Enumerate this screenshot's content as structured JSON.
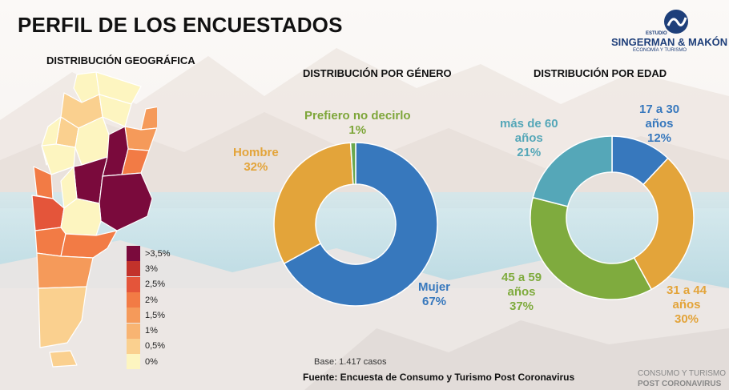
{
  "page": {
    "title": "PERFIL DE LOS ENCUESTADOS",
    "logo": {
      "top_text": "ESTUDIO",
      "name": "SINGERMAN & MAKÓN",
      "tagline": "ECONOMÍA Y TURISMO"
    },
    "base": "Base: 1.417 casos",
    "source": "Fuente: Encuesta de Consumo y Turismo Post Coronavirus",
    "footer": {
      "line1": "CONSUMO Y TURISMO",
      "line2": "POST CORONAVIRUS"
    }
  },
  "chart_data": [
    {
      "type": "map",
      "title": "DISTRIBUCIÓN GEOGRÁFICA",
      "legend": {
        "entries": [
          {
            "label": ">3,5%",
            "color": "#7a0a3c"
          },
          {
            "label": "3%",
            "color": "#c2322b"
          },
          {
            "label": "2,5%",
            "color": "#e4553a"
          },
          {
            "label": "2%",
            "color": "#f27b45"
          },
          {
            "label": "1,5%",
            "color": "#f59a5a"
          },
          {
            "label": "1%",
            "color": "#f8b472"
          },
          {
            "label": "0,5%",
            "color": "#fad08f"
          },
          {
            "label": "0%",
            "color": "#fdf5c0"
          }
        ]
      }
    },
    {
      "type": "pie",
      "title": "DISTRIBUCIÓN POR GÉNERO",
      "series": [
        {
          "name": "Mujer",
          "value": 67,
          "label": "67%",
          "color": "#3778bd"
        },
        {
          "name": "Hombre",
          "value": 32,
          "label": "32%",
          "color": "#e3a43a"
        },
        {
          "name": "Prefiero no decirlo",
          "value": 1,
          "label": "1%",
          "color": "#6aa84f"
        }
      ]
    },
    {
      "type": "pie",
      "title": "DISTRIBUCIÓN POR EDAD",
      "series": [
        {
          "name_lines": [
            "17 a 30",
            "años"
          ],
          "value": 12,
          "label": "12%",
          "color": "#3778bd"
        },
        {
          "name_lines": [
            "31 a 44",
            "años"
          ],
          "value": 30,
          "label": "30%",
          "color": "#e3a43a"
        },
        {
          "name_lines": [
            "45 a 59",
            "años"
          ],
          "value": 37,
          "label": "37%",
          "color": "#7fab3e"
        },
        {
          "name_lines": [
            "más de 60",
            "años"
          ],
          "value": 21,
          "label": "21%",
          "color": "#55a7b8"
        }
      ]
    }
  ]
}
